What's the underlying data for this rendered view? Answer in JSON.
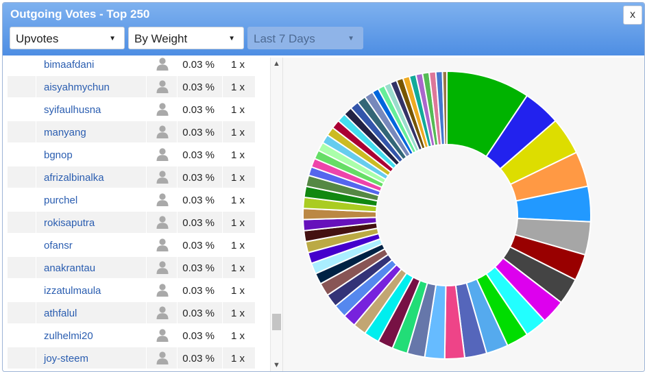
{
  "header": {
    "title": "Outgoing Votes - Top 250",
    "close_label": "x",
    "filters": [
      {
        "value": "Upvotes"
      },
      {
        "value": "By Weight"
      },
      {
        "value": "Last 7 Days"
      }
    ]
  },
  "rows": [
    {
      "name": "bimaafdani",
      "pct": "0.03 %",
      "count": "1 x"
    },
    {
      "name": "aisyahmychun",
      "pct": "0.03 %",
      "count": "1 x"
    },
    {
      "name": "syifaulhusna",
      "pct": "0.03 %",
      "count": "1 x"
    },
    {
      "name": "manyang",
      "pct": "0.03 %",
      "count": "1 x"
    },
    {
      "name": "bgnop",
      "pct": "0.03 %",
      "count": "1 x"
    },
    {
      "name": "afrizalbinalka",
      "pct": "0.03 %",
      "count": "1 x"
    },
    {
      "name": "purchel",
      "pct": "0.03 %",
      "count": "1 x"
    },
    {
      "name": "rokisaputra",
      "pct": "0.03 %",
      "count": "1 x"
    },
    {
      "name": "ofansr",
      "pct": "0.03 %",
      "count": "1 x"
    },
    {
      "name": "anakrantau",
      "pct": "0.03 %",
      "count": "1 x"
    },
    {
      "name": "izzatulmaula",
      "pct": "0.03 %",
      "count": "1 x"
    },
    {
      "name": "athfalul",
      "pct": "0.03 %",
      "count": "1 x"
    },
    {
      "name": "zulhelmi20",
      "pct": "0.03 %",
      "count": "1 x"
    },
    {
      "name": "joy-steem",
      "pct": "0.03 %",
      "count": "1 x"
    }
  ],
  "icons": {
    "user": "user-icon",
    "scroll_up": "scroll-up-icon",
    "scroll_down": "scroll-down-icon"
  },
  "chart_data": {
    "type": "pie",
    "donut": true,
    "slice_angles_deg": [
      38,
      17,
      17,
      16,
      16,
      15,
      12,
      12,
      11,
      10,
      10,
      10,
      10,
      9,
      9,
      8,
      7,
      7,
      7,
      6,
      6,
      6,
      6,
      6,
      5,
      5,
      5,
      5,
      5,
      5,
      5,
      5,
      5,
      5,
      4,
      4,
      4,
      4,
      4,
      4,
      4,
      4,
      4,
      4,
      4,
      4,
      3,
      3,
      3,
      3,
      3,
      3,
      3,
      3,
      3,
      3,
      3,
      2
    ],
    "colors": [
      "#00b300",
      "#2222ee",
      "#dddd00",
      "#ff9944",
      "#2299ff",
      "#a6a6a6",
      "#990000",
      "#444444",
      "#dd00ee",
      "#22ffff",
      "#00dd00",
      "#55aaee",
      "#5566bb",
      "#ee4488",
      "#66bbff",
      "#6677aa",
      "#22dd77",
      "#771144",
      "#00eeee",
      "#c2a673",
      "#7722dd",
      "#5588ee",
      "#333377",
      "#885555",
      "#002244",
      "#aaeeff",
      "#4400cc",
      "#bbaa44",
      "#441111",
      "#6611bb",
      "#bb8844",
      "#aacc22",
      "#118811",
      "#558844",
      "#5566ee",
      "#ee44aa",
      "#66dd66",
      "#aaffaa",
      "#66ccee",
      "#ccbb22",
      "#aa0033",
      "#44ddee",
      "#222244",
      "#3355aa",
      "#336677",
      "#7788bb",
      "#0066dd",
      "#66ee99",
      "#99ddcc",
      "#333366",
      "#775500",
      "#eeaa22",
      "#11aa99",
      "#aa66cc",
      "#55bb55",
      "#dd7799",
      "#4477cc",
      "#997744"
    ]
  }
}
